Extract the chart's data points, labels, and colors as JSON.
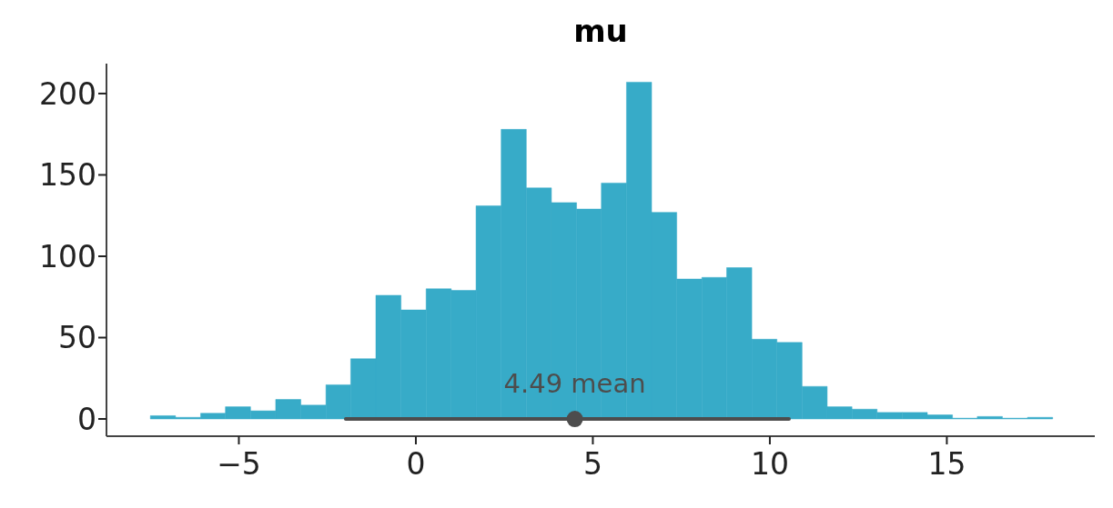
{
  "chart_data": {
    "type": "histogram",
    "title": "mu",
    "color": "#37abc8",
    "bins": [
      -7.5,
      -6.79,
      -6.08,
      -5.38,
      -4.67,
      -3.96,
      -3.25,
      -2.54,
      -1.84,
      -1.13,
      -0.42,
      0.29,
      1.0,
      1.7,
      2.41,
      3.12,
      3.83,
      4.54,
      5.24,
      5.95,
      6.66,
      7.37,
      8.08,
      8.78,
      9.49,
      10.2,
      10.91,
      11.62,
      12.32,
      13.03,
      13.74,
      14.45,
      15.16,
      15.86,
      16.57,
      17.28,
      17.99
    ],
    "values": [
      2,
      1,
      3.5,
      7.5,
      5,
      12,
      8.5,
      21,
      37,
      76,
      67,
      80,
      79,
      131,
      178,
      142,
      133,
      129,
      145,
      207,
      127,
      86,
      87,
      93,
      49,
      47,
      20,
      7.5,
      6,
      4,
      4,
      2.5,
      0.5,
      1.5,
      0.5,
      1
    ],
    "series": [
      {
        "type": "line",
        "color": "#4d4d4d",
        "x": [
          -1.98,
          10.54
        ],
        "values": [
          0,
          0
        ]
      },
      {
        "type": "scatter",
        "color": "#4d4d4d",
        "x": [
          4.49
        ],
        "values": [
          0
        ]
      }
    ],
    "annotations": [
      {
        "text": "4.49 mean",
        "x": 4.49,
        "y": 22
      }
    ],
    "xlim": [
      -8.74,
      19.18
    ],
    "ylim": [
      -10.6,
      218.4
    ],
    "xticks": [
      {
        "value": -5,
        "label": "−5"
      },
      0,
      5,
      10,
      15
    ],
    "yticks": [
      0,
      50,
      100,
      150,
      200
    ],
    "grid": false
  }
}
